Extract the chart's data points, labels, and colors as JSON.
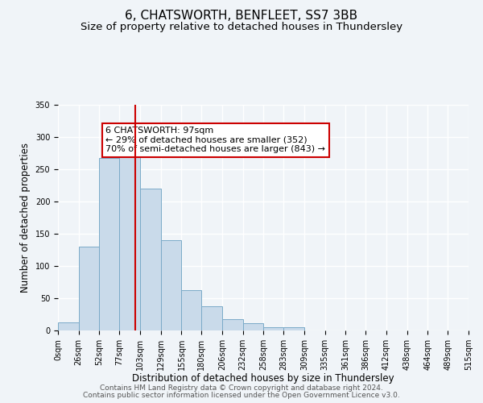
{
  "title": "6, CHATSWORTH, BENFLEET, SS7 3BB",
  "subtitle": "Size of property relative to detached houses in Thundersley",
  "xlabel": "Distribution of detached houses by size in Thundersley",
  "ylabel": "Number of detached properties",
  "bin_edges": [
    0,
    26,
    52,
    77,
    103,
    129,
    155,
    180,
    206,
    232,
    258,
    283,
    309,
    335,
    361,
    386,
    412,
    438,
    464,
    489,
    515
  ],
  "bin_labels": [
    "0sqm",
    "26sqm",
    "52sqm",
    "77sqm",
    "103sqm",
    "129sqm",
    "155sqm",
    "180sqm",
    "206sqm",
    "232sqm",
    "258sqm",
    "283sqm",
    "309sqm",
    "335sqm",
    "361sqm",
    "386sqm",
    "412sqm",
    "438sqm",
    "464sqm",
    "489sqm",
    "515sqm"
  ],
  "counts": [
    13,
    130,
    268,
    287,
    220,
    140,
    62,
    38,
    18,
    11,
    5,
    5,
    0,
    0,
    0,
    0,
    0,
    0,
    0,
    0
  ],
  "bar_color": "#c9daea",
  "bar_edge_color": "#7aaac8",
  "vline_x": 97,
  "vline_color": "#cc0000",
  "annotation_text": "6 CHATSWORTH: 97sqm\n← 29% of detached houses are smaller (352)\n70% of semi-detached houses are larger (843) →",
  "annotation_box_color": "#ffffff",
  "annotation_box_edge_color": "#cc0000",
  "ylim": [
    0,
    350
  ],
  "yticks": [
    0,
    50,
    100,
    150,
    200,
    250,
    300,
    350
  ],
  "footer_line1": "Contains HM Land Registry data © Crown copyright and database right 2024.",
  "footer_line2": "Contains public sector information licensed under the Open Government Licence v3.0.",
  "background_color": "#f0f4f8",
  "grid_color": "#ffffff",
  "title_fontsize": 11,
  "subtitle_fontsize": 9.5,
  "axis_label_fontsize": 8.5,
  "tick_fontsize": 7,
  "annotation_fontsize": 8,
  "footer_fontsize": 6.5
}
